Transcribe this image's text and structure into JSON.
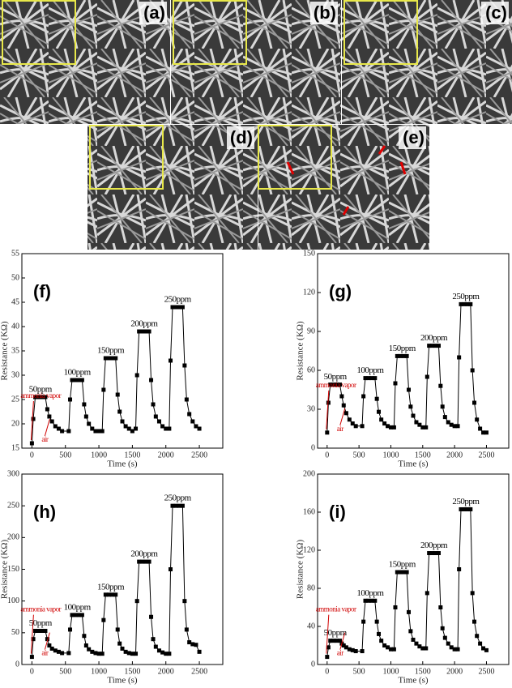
{
  "images": [
    {
      "label": "(a)"
    },
    {
      "label": "(b)"
    },
    {
      "label": "(c)"
    },
    {
      "label": "(d)"
    },
    {
      "label": "(e)"
    }
  ],
  "chart_data": [
    {
      "type": "line",
      "panel_label": "(f)",
      "x_label": "Time (s)",
      "y_label": "Resistance (KΩ)",
      "xlim": [
        -150,
        2850
      ],
      "xticks": [
        0,
        500,
        1000,
        1500,
        2000,
        2500
      ],
      "ylim": [
        15,
        55
      ],
      "yticks": [
        15,
        20,
        25,
        30,
        35,
        40,
        45,
        50,
        55
      ],
      "peak_labels": [
        "50ppm",
        "100ppm",
        "150ppm",
        "200ppm",
        "250ppm"
      ],
      "annotations": [
        "ammonia vapor",
        "air"
      ],
      "annotation_color": "#d00000",
      "x": [
        0,
        20,
        50,
        100,
        150,
        200,
        230,
        260,
        300,
        350,
        400,
        450,
        550,
        570,
        600,
        650,
        700,
        750,
        780,
        810,
        850,
        900,
        950,
        1000,
        1050,
        1070,
        1100,
        1150,
        1200,
        1250,
        1280,
        1310,
        1350,
        1400,
        1450,
        1500,
        1550,
        1570,
        1600,
        1650,
        1700,
        1750,
        1780,
        1810,
        1850,
        1900,
        1950,
        2000,
        2050,
        2070,
        2100,
        2150,
        2200,
        2250,
        2280,
        2310,
        2350,
        2400,
        2450,
        2500
      ],
      "series": [
        {
          "color": "#000000",
          "values": [
            16,
            21,
            25.5,
            25.5,
            25.5,
            25.5,
            23,
            21.5,
            20.5,
            19.5,
            19,
            18.5,
            18.5,
            25,
            29,
            29,
            29,
            29,
            24,
            21.5,
            20,
            19,
            18.5,
            18.5,
            18.5,
            27,
            33.5,
            33.5,
            33.5,
            33.5,
            26,
            22.5,
            20.5,
            19.5,
            19,
            18.5,
            19,
            30,
            39,
            39,
            39,
            39,
            29,
            24,
            21.5,
            20.5,
            19.5,
            19,
            19,
            33,
            44,
            44,
            44,
            44,
            32,
            25,
            22,
            20.5,
            19.5,
            19
          ]
        }
      ]
    },
    {
      "type": "line",
      "panel_label": "(g)",
      "x_label": "Time (s)",
      "y_label": "Resistance (KΩ)",
      "xlim": [
        -150,
        2850
      ],
      "xticks": [
        0,
        500,
        1000,
        1500,
        2000,
        2500
      ],
      "ylim": [
        0,
        150
      ],
      "yticks": [
        0,
        30,
        60,
        90,
        120,
        150
      ],
      "peak_labels": [
        "50ppm",
        "100ppm",
        "150ppm",
        "200ppm",
        "250ppm"
      ],
      "annotations": [
        "ammonia vapor",
        "air"
      ],
      "annotation_color": "#d00000",
      "x": [
        0,
        20,
        50,
        100,
        150,
        200,
        230,
        260,
        300,
        350,
        400,
        450,
        550,
        570,
        600,
        650,
        700,
        750,
        780,
        810,
        850,
        900,
        950,
        1000,
        1050,
        1070,
        1100,
        1150,
        1200,
        1250,
        1280,
        1310,
        1350,
        1400,
        1450,
        1500,
        1550,
        1570,
        1600,
        1650,
        1700,
        1750,
        1780,
        1810,
        1850,
        1900,
        1950,
        2000,
        2050,
        2070,
        2100,
        2150,
        2200,
        2250,
        2280,
        2310,
        2350,
        2400,
        2450,
        2500
      ],
      "series": [
        {
          "color": "#000000",
          "values": [
            12,
            35,
            49,
            49,
            49,
            49,
            40,
            33,
            27,
            22,
            19,
            17,
            17,
            40,
            54,
            54,
            54,
            54,
            38,
            28,
            22,
            19,
            17,
            16,
            16,
            50,
            71,
            71,
            71,
            71,
            45,
            32,
            25,
            20,
            18,
            16,
            16,
            55,
            79,
            79,
            79,
            79,
            48,
            32,
            24,
            20,
            18,
            17,
            17,
            70,
            111,
            111,
            111,
            111,
            60,
            35,
            22,
            15,
            12,
            12
          ]
        }
      ]
    },
    {
      "type": "line",
      "panel_label": "(h)",
      "x_label": "Time (s)",
      "y_label": "Resistance (KΩ)",
      "xlim": [
        -150,
        2850
      ],
      "xticks": [
        0,
        500,
        1000,
        1500,
        2000,
        2500
      ],
      "ylim": [
        0,
        300
      ],
      "yticks": [
        0,
        50,
        100,
        150,
        200,
        250,
        300
      ],
      "peak_labels": [
        "50ppm",
        "100ppm",
        "150ppm",
        "200ppm",
        "250ppm"
      ],
      "annotations": [
        "ammonia vapor",
        "air"
      ],
      "annotation_color": "#d00000",
      "x": [
        0,
        20,
        50,
        100,
        150,
        200,
        230,
        260,
        300,
        350,
        400,
        450,
        550,
        570,
        600,
        650,
        700,
        750,
        780,
        810,
        850,
        900,
        950,
        1000,
        1050,
        1070,
        1100,
        1150,
        1200,
        1250,
        1280,
        1310,
        1350,
        1400,
        1450,
        1500,
        1550,
        1570,
        1600,
        1650,
        1700,
        1750,
        1780,
        1810,
        1850,
        1900,
        1950,
        2000,
        2050,
        2070,
        2100,
        2150,
        2200,
        2250,
        2280,
        2310,
        2350,
        2400,
        2450,
        2500
      ],
      "series": [
        {
          "color": "#000000",
          "values": [
            12,
            40,
            53,
            53,
            53,
            53,
            40,
            30,
            25,
            22,
            20,
            18,
            18,
            55,
            78,
            78,
            78,
            78,
            45,
            30,
            24,
            20,
            18,
            17,
            17,
            70,
            110,
            110,
            110,
            110,
            55,
            33,
            25,
            20,
            18,
            17,
            17,
            100,
            162,
            162,
            162,
            162,
            75,
            40,
            28,
            22,
            19,
            17,
            17,
            150,
            250,
            250,
            250,
            250,
            100,
            55,
            35,
            32,
            31,
            20
          ]
        }
      ]
    },
    {
      "type": "line",
      "panel_label": "(i)",
      "x_label": "Time (s)",
      "y_label": "Resistance (KΩ)",
      "xlim": [
        -150,
        2850
      ],
      "xticks": [
        0,
        500,
        1000,
        1500,
        2000,
        2500
      ],
      "ylim": [
        0,
        200
      ],
      "yticks": [
        0,
        40,
        80,
        120,
        160,
        200
      ],
      "peak_labels": [
        "50ppm",
        "100ppm",
        "150ppm",
        "200ppm",
        "250ppm"
      ],
      "annotations": [
        "ammonia vapor",
        "air"
      ],
      "annotation_color": "#d00000",
      "x": [
        0,
        20,
        50,
        100,
        150,
        200,
        230,
        260,
        300,
        350,
        400,
        450,
        550,
        570,
        600,
        650,
        700,
        750,
        780,
        810,
        850,
        900,
        950,
        1000,
        1050,
        1070,
        1100,
        1150,
        1200,
        1250,
        1280,
        1310,
        1350,
        1400,
        1450,
        1500,
        1550,
        1570,
        1600,
        1650,
        1700,
        1750,
        1780,
        1810,
        1850,
        1900,
        1950,
        2000,
        2050,
        2070,
        2100,
        2150,
        2200,
        2250,
        2280,
        2310,
        2350,
        2400,
        2450,
        2500
      ],
      "series": [
        {
          "color": "#000000",
          "values": [
            8,
            18,
            25,
            25,
            25,
            25,
            22,
            20,
            18,
            16,
            15,
            14,
            14,
            45,
            67,
            67,
            67,
            67,
            45,
            32,
            25,
            20,
            18,
            16,
            16,
            60,
            97,
            97,
            97,
            97,
            55,
            35,
            26,
            22,
            19,
            17,
            17,
            75,
            117,
            117,
            117,
            117,
            60,
            38,
            28,
            22,
            18,
            16,
            16,
            100,
            163,
            163,
            163,
            163,
            75,
            45,
            30,
            22,
            17,
            15
          ]
        }
      ]
    }
  ]
}
